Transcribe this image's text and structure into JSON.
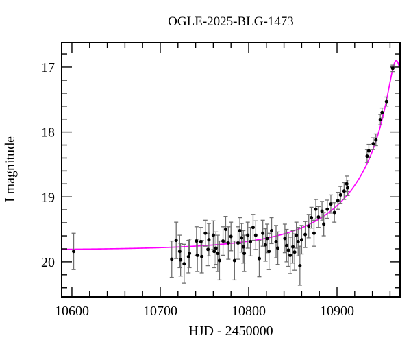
{
  "title": "OGLE-2025-BLG-1473",
  "axes": {
    "xlabel": "HJD - 2450000",
    "ylabel": "I magnitude",
    "x_range": [
      10588.4,
      10971.3
    ],
    "y_range_mag": [
      16.62,
      20.54
    ],
    "x_ticks": [
      10600,
      10700,
      10800,
      10900
    ],
    "x_tick_labels": [
      "10600",
      "10700",
      "10800",
      "10900"
    ],
    "x_minor_step": 20,
    "y_ticks": [
      17,
      18,
      19,
      20
    ],
    "y_tick_labels": [
      "17",
      "18",
      "19",
      "20"
    ],
    "y_minor_step": 0.2
  },
  "colors": {
    "background": "#ffffff",
    "frame": "#000000",
    "model_curve": "#ff00ff",
    "data_point": "#000000",
    "error_bar": "#6f6f6f"
  },
  "chart_data": {
    "type": "scatter",
    "title": "OGLE-2025-BLG-1473",
    "xlabel": "HJD - 2450000",
    "ylabel": "I magnitude",
    "x_range": [
      10588.4,
      10971.3
    ],
    "y_range": [
      20.54,
      16.62
    ],
    "y_axis_inverted": true,
    "grid": false,
    "legend": "none",
    "model": {
      "name": "microlensing-model-curve",
      "form": "paczynski",
      "t0": 10967,
      "tE": 112,
      "u0": 0.068,
      "baseline_mag": 19.82
    },
    "series": [
      {
        "name": "I-band photometry",
        "marker": "filled-circle",
        "points_format": [
          "hjd_minus_2450000",
          "i_mag",
          "mag_error"
        ],
        "points": [
          [
            10587,
            19.81,
            0.2
          ],
          [
            10602,
            19.84,
            0.28
          ],
          [
            10713,
            19.96,
            0.28
          ],
          [
            10718,
            19.67,
            0.28
          ],
          [
            10722,
            19.84,
            0.25
          ],
          [
            10723,
            19.97,
            0.25
          ],
          [
            10727,
            20.03,
            0.3
          ],
          [
            10732,
            19.92,
            0.25
          ],
          [
            10733,
            19.87,
            0.22
          ],
          [
            10741,
            19.68,
            0.22
          ],
          [
            10742,
            19.9,
            0.25
          ],
          [
            10746,
            19.69,
            0.22
          ],
          [
            10747,
            19.92,
            0.25
          ],
          [
            10751,
            19.56,
            0.2
          ],
          [
            10754,
            19.81,
            0.25
          ],
          [
            10755,
            19.66,
            0.25
          ],
          [
            10760,
            19.59,
            0.22
          ],
          [
            10761,
            19.84,
            0.25
          ],
          [
            10763,
            19.79,
            0.25
          ],
          [
            10765,
            19.87,
            0.28
          ],
          [
            10767,
            19.98,
            0.3
          ],
          [
            10771,
            19.68,
            0.22
          ],
          [
            10774,
            19.5,
            0.2
          ],
          [
            10777,
            19.71,
            0.25
          ],
          [
            10780,
            19.61,
            0.22
          ],
          [
            10784,
            19.98,
            0.3
          ],
          [
            10788,
            19.71,
            0.25
          ],
          [
            10790,
            19.52,
            0.2
          ],
          [
            10792,
            19.63,
            0.22
          ],
          [
            10794,
            19.77,
            0.25
          ],
          [
            10795,
            19.87,
            0.28
          ],
          [
            10799,
            19.59,
            0.2
          ],
          [
            10802,
            19.69,
            0.22
          ],
          [
            10805,
            19.47,
            0.2
          ],
          [
            10808,
            19.59,
            0.22
          ],
          [
            10812,
            19.95,
            0.28
          ],
          [
            10816,
            19.56,
            0.2
          ],
          [
            10819,
            19.74,
            0.25
          ],
          [
            10821,
            19.64,
            0.22
          ],
          [
            10823,
            19.84,
            0.28
          ],
          [
            10826,
            19.52,
            0.2
          ],
          [
            10831,
            19.69,
            0.25
          ],
          [
            10833,
            19.79,
            0.25
          ],
          [
            10841,
            19.64,
            0.22
          ],
          [
            10843,
            19.75,
            0.25
          ],
          [
            10845,
            19.82,
            0.25
          ],
          [
            10847,
            19.9,
            0.28
          ],
          [
            10850,
            19.77,
            0.25
          ],
          [
            10852,
            19.85,
            0.28
          ],
          [
            10854,
            19.59,
            0.2
          ],
          [
            10856,
            19.69,
            0.22
          ],
          [
            10858,
            20.06,
            0.3
          ],
          [
            10860,
            19.66,
            0.22
          ],
          [
            10864,
            19.58,
            0.2
          ],
          [
            10868,
            19.45,
            0.18
          ],
          [
            10871,
            19.32,
            0.16
          ],
          [
            10874,
            19.56,
            0.2
          ],
          [
            10876,
            19.19,
            0.15
          ],
          [
            10879,
            19.31,
            0.16
          ],
          [
            10883,
            19.22,
            0.15
          ],
          [
            10885,
            19.42,
            0.18
          ],
          [
            10889,
            19.19,
            0.14
          ],
          [
            10893,
            19.11,
            0.14
          ],
          [
            10897,
            19.24,
            0.15
          ],
          [
            10901,
            19.06,
            0.13
          ],
          [
            10904,
            18.97,
            0.13
          ],
          [
            10908,
            18.91,
            0.13
          ],
          [
            10911,
            18.8,
            0.12
          ],
          [
            10912,
            18.86,
            0.12
          ],
          [
            10934,
            18.37,
            0.1
          ],
          [
            10936,
            18.29,
            0.1
          ],
          [
            10941,
            18.18,
            0.09
          ],
          [
            10944,
            18.12,
            0.09
          ],
          [
            10949,
            17.81,
            0.08
          ],
          [
            10951,
            17.7,
            0.07
          ],
          [
            10956,
            17.53,
            0.07
          ],
          [
            10963,
            17.02,
            0.05
          ]
        ]
      }
    ]
  }
}
